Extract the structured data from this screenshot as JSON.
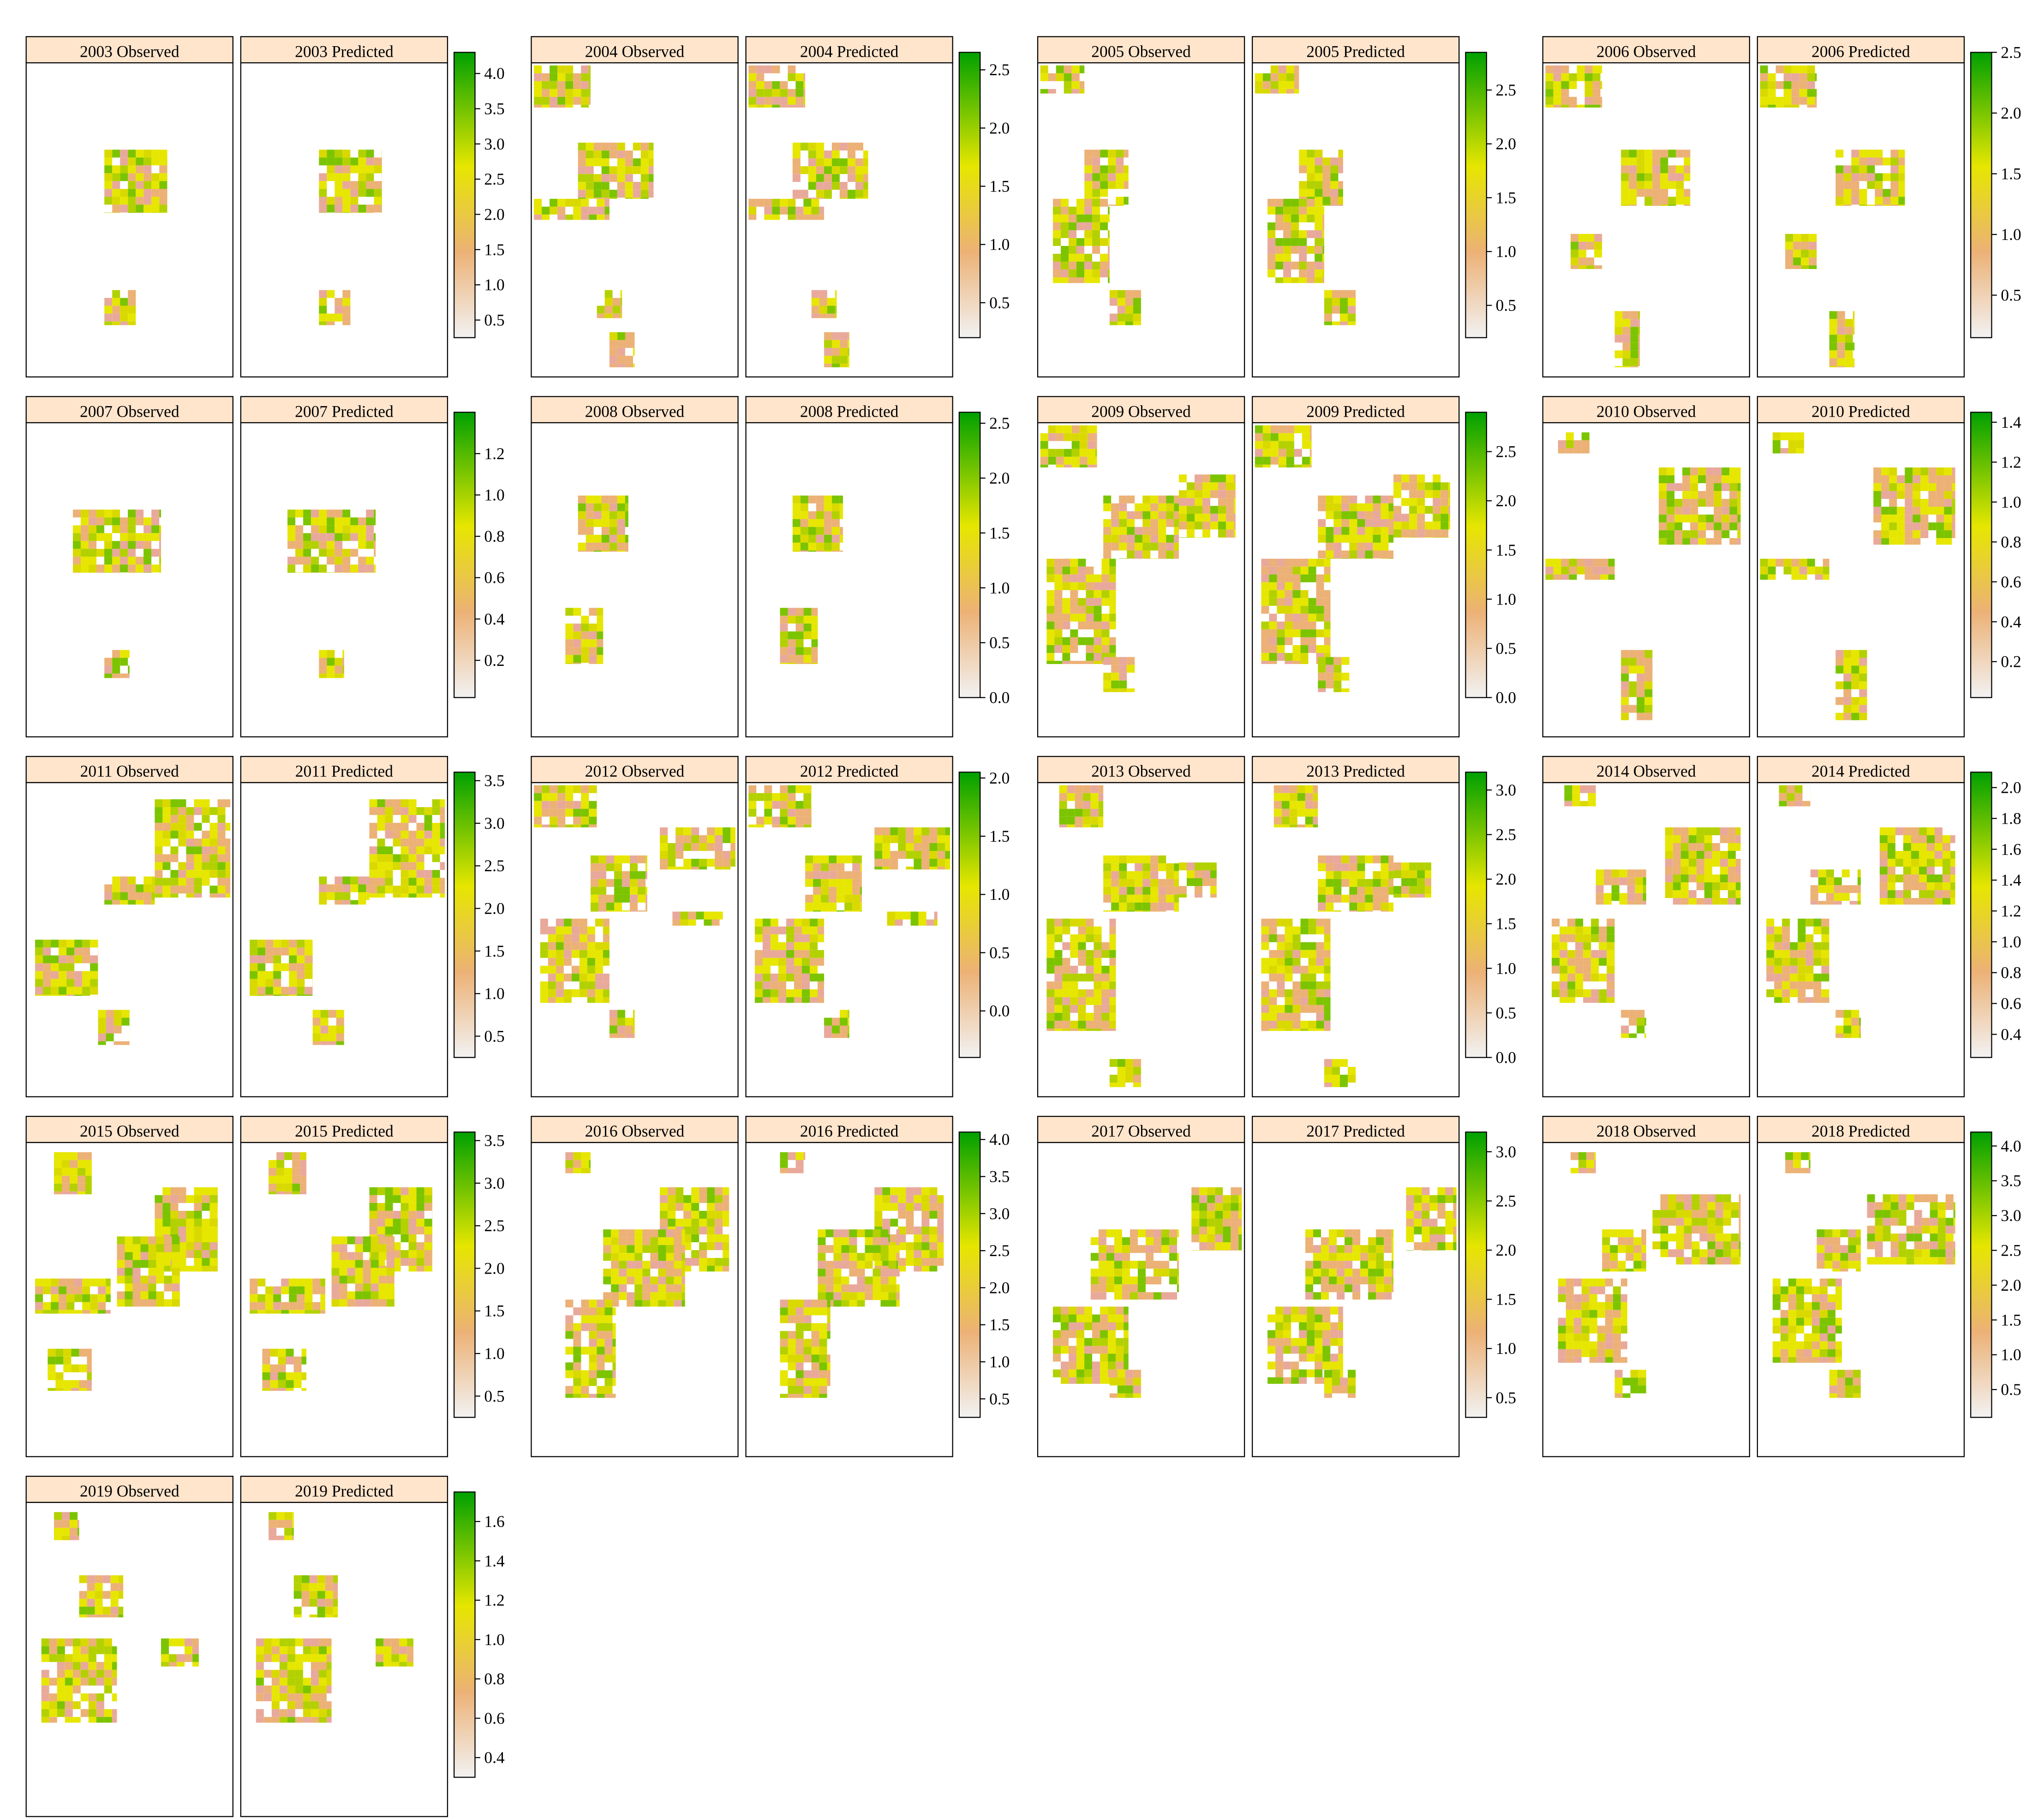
{
  "colors": {
    "high": "#00a000",
    "mid": "#e6e600",
    "low": "#ecb176",
    "min": "#f2f2f2",
    "strip": "#ffe5cc",
    "frame": "#000000"
  },
  "panels": [
    {
      "year": "2003",
      "observed_label": "2003 Observed",
      "predicted_label": "2003 Predicted",
      "legend": {
        "min": 0.25,
        "max": 4.3,
        "ticks": [
          "0.5",
          "1.0",
          "1.5",
          "2.0",
          "2.5",
          "3.0",
          "3.5",
          "4.0"
        ]
      }
    },
    {
      "year": "2004",
      "observed_label": "2004 Observed",
      "predicted_label": "2004 Predicted",
      "legend": {
        "min": 0.2,
        "max": 2.65,
        "ticks": [
          "0.5",
          "1.0",
          "1.5",
          "2.0",
          "2.5"
        ]
      }
    },
    {
      "year": "2005",
      "observed_label": "2005 Observed",
      "predicted_label": "2005 Predicted",
      "legend": {
        "min": 0.2,
        "max": 2.85,
        "ticks": [
          "0.5",
          "1.0",
          "1.5",
          "2.0",
          "2.5"
        ]
      }
    },
    {
      "year": "2006",
      "observed_label": "2006 Observed",
      "predicted_label": "2006 Predicted",
      "legend": {
        "min": 0.15,
        "max": 2.5,
        "ticks": [
          "0.5",
          "1.0",
          "1.5",
          "2.0",
          "2.5"
        ]
      }
    },
    {
      "year": "2007",
      "observed_label": "2007 Observed",
      "predicted_label": "2007 Predicted",
      "legend": {
        "min": 0.02,
        "max": 1.4,
        "ticks": [
          "0.2",
          "0.4",
          "0.6",
          "0.8",
          "1.0",
          "1.2"
        ]
      }
    },
    {
      "year": "2008",
      "observed_label": "2008 Observed",
      "predicted_label": "2008 Predicted",
      "legend": {
        "min": 0.0,
        "max": 2.6,
        "ticks": [
          "0.0",
          "0.5",
          "1.0",
          "1.5",
          "2.0",
          "2.5"
        ]
      }
    },
    {
      "year": "2009",
      "observed_label": "2009 Observed",
      "predicted_label": "2009 Predicted",
      "legend": {
        "min": 0.0,
        "max": 2.9,
        "ticks": [
          "0.0",
          "0.5",
          "1.0",
          "1.5",
          "2.0",
          "2.5"
        ]
      }
    },
    {
      "year": "2010",
      "observed_label": "2010 Observed",
      "predicted_label": "2010 Predicted",
      "legend": {
        "min": 0.02,
        "max": 1.45,
        "ticks": [
          "0.2",
          "0.4",
          "0.6",
          "0.8",
          "1.0",
          "1.2",
          "1.4"
        ]
      }
    },
    {
      "year": "2011",
      "observed_label": "2011 Observed",
      "predicted_label": "2011 Predicted",
      "legend": {
        "min": 0.25,
        "max": 3.6,
        "ticks": [
          "0.5",
          "1.0",
          "1.5",
          "2.0",
          "2.5",
          "3.0",
          "3.5"
        ]
      }
    },
    {
      "year": "2012",
      "observed_label": "2012 Observed",
      "predicted_label": "2012 Predicted",
      "legend": {
        "min": -0.4,
        "max": 2.05,
        "ticks": [
          "0.0",
          "0.5",
          "1.0",
          "1.5",
          "2.0"
        ]
      }
    },
    {
      "year": "2013",
      "observed_label": "2013 Observed",
      "predicted_label": "2013 Predicted",
      "legend": {
        "min": 0.0,
        "max": 3.2,
        "ticks": [
          "0.0",
          "0.5",
          "1.0",
          "1.5",
          "2.0",
          "2.5",
          "3.0"
        ]
      }
    },
    {
      "year": "2014",
      "observed_label": "2014 Observed",
      "predicted_label": "2014 Predicted",
      "legend": {
        "min": 0.25,
        "max": 2.1,
        "ticks": [
          "0.4",
          "0.6",
          "0.8",
          "1.0",
          "1.2",
          "1.4",
          "1.6",
          "1.8",
          "2.0"
        ]
      }
    },
    {
      "year": "2015",
      "observed_label": "2015 Observed",
      "predicted_label": "2015 Predicted",
      "legend": {
        "min": 0.25,
        "max": 3.6,
        "ticks": [
          "0.5",
          "1.0",
          "1.5",
          "2.0",
          "2.5",
          "3.0",
          "3.5"
        ]
      }
    },
    {
      "year": "2016",
      "observed_label": "2016 Observed",
      "predicted_label": "2016 Predicted",
      "legend": {
        "min": 0.25,
        "max": 4.1,
        "ticks": [
          "0.5",
          "1.0",
          "1.5",
          "2.0",
          "2.5",
          "3.0",
          "3.5",
          "4.0"
        ]
      }
    },
    {
      "year": "2017",
      "observed_label": "2017 Observed",
      "predicted_label": "2017 Predicted",
      "legend": {
        "min": 0.3,
        "max": 3.2,
        "ticks": [
          "0.5",
          "1.0",
          "1.5",
          "2.0",
          "2.5",
          "3.0"
        ]
      }
    },
    {
      "year": "2018",
      "observed_label": "2018 Observed",
      "predicted_label": "2018 Predicted",
      "legend": {
        "min": 0.1,
        "max": 4.2,
        "ticks": [
          "0.5",
          "1.0",
          "1.5",
          "2.0",
          "2.5",
          "3.0",
          "3.5",
          "4.0"
        ]
      }
    },
    {
      "year": "2019",
      "observed_label": "2019 Observed",
      "predicted_label": "2019 Predicted",
      "legend": {
        "min": 0.3,
        "max": 1.75,
        "ticks": [
          "0.4",
          "0.6",
          "0.8",
          "1.0",
          "1.2",
          "1.4",
          "1.6"
        ]
      }
    }
  ]
}
